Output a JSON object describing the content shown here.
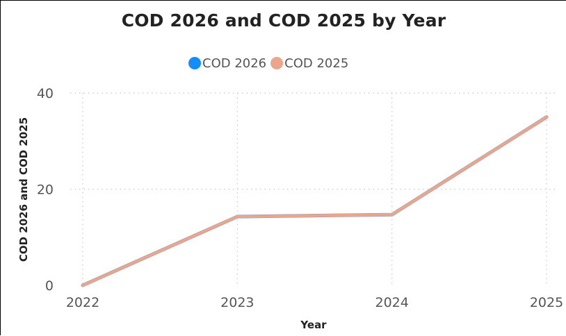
{
  "chart_data": {
    "type": "line",
    "title": "COD 2026 and COD 2025 by Year",
    "xlabel": "Year",
    "ylabel": "COD 2026 and COD 2025",
    "categories": [
      "2022",
      "2023",
      "2024",
      "2025"
    ],
    "ylim": [
      0,
      40
    ],
    "yticks": [
      "0",
      "20",
      "40"
    ],
    "grid": true,
    "legend_position": "top-center",
    "series": [
      {
        "name": "COD 2026",
        "color": "#118DFF",
        "values": [
          0,
          14.3,
          14.7,
          35
        ]
      },
      {
        "name": "COD 2025",
        "color": "#EBA58A",
        "values": [
          0,
          14.3,
          14.7,
          35
        ]
      }
    ]
  }
}
